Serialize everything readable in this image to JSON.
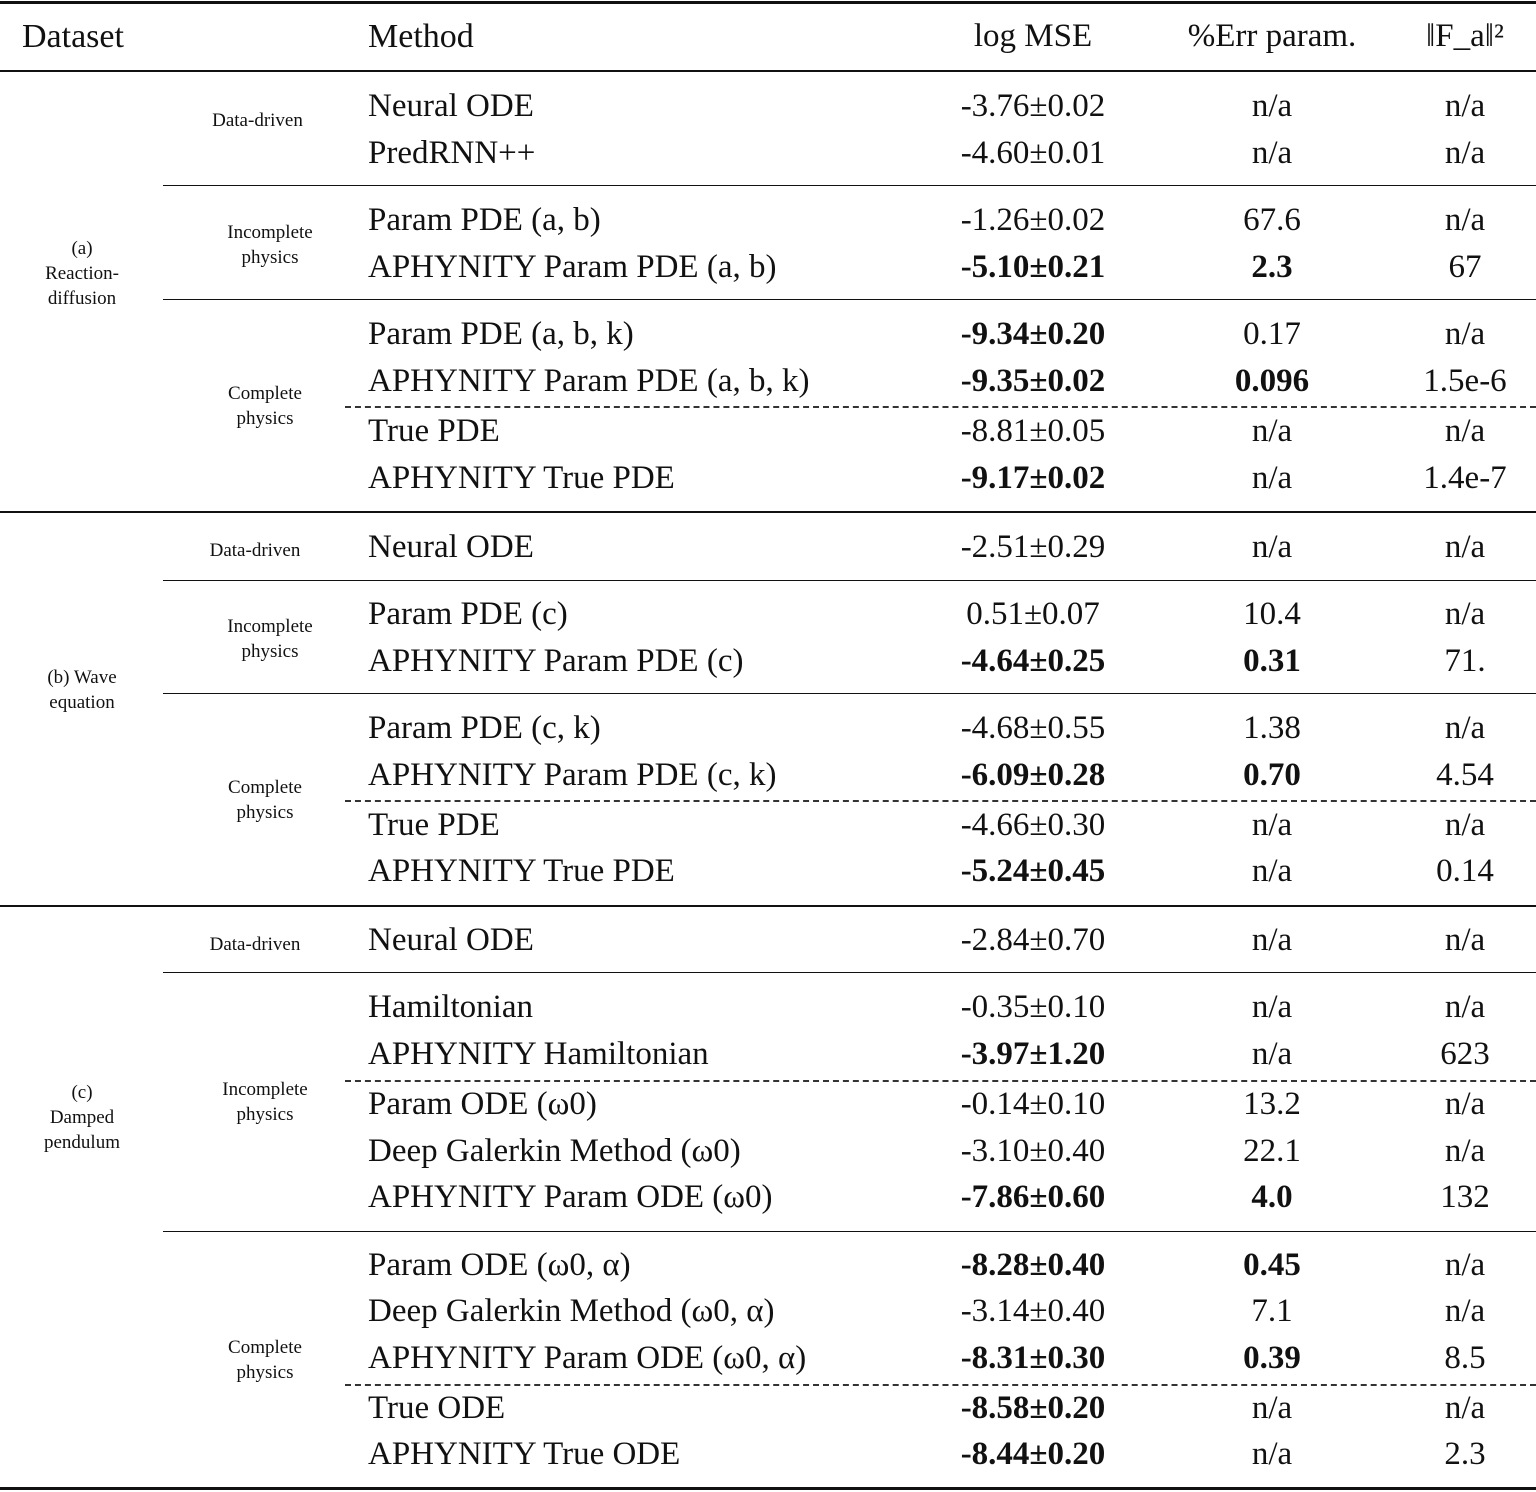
{
  "header": {
    "dataset": "Dataset",
    "method": "Method",
    "log_mse": "log MSE",
    "err_param": "%Err param.",
    "fa_norm": "‖F_a‖²"
  },
  "sections": [
    {
      "dataset": "(a) Reaction-diffusion",
      "groups": [
        {
          "category": "Data-driven",
          "rows": [
            {
              "method": "Neural ODE",
              "log_mse": "-3.76±0.02",
              "err_param": "n/a",
              "fa_norm": "n/a",
              "bold": []
            },
            {
              "method": "PredRNN++",
              "log_mse": "-4.60±0.01",
              "err_param": "n/a",
              "fa_norm": "n/a",
              "bold": []
            }
          ]
        },
        {
          "category": "Incomplete physics",
          "rows": [
            {
              "method": "Param PDE (a, b)",
              "log_mse": "-1.26±0.02",
              "err_param": "67.6",
              "fa_norm": "n/a",
              "bold": []
            },
            {
              "method": "APHYNITY Param PDE (a, b)",
              "log_mse": "-5.10±0.21",
              "err_param": "2.3",
              "fa_norm": "67",
              "bold": [
                "log_mse",
                "err_param"
              ]
            }
          ]
        },
        {
          "category": "Complete physics",
          "rows": [
            {
              "method": "Param PDE (a, b, k)",
              "log_mse": "-9.34±0.20",
              "err_param": "0.17",
              "fa_norm": "n/a",
              "bold": [
                "log_mse"
              ]
            },
            {
              "method": "APHYNITY Param PDE (a, b, k)",
              "log_mse": "-9.35±0.02",
              "err_param": "0.096",
              "fa_norm": "1.5e-6",
              "bold": [
                "log_mse",
                "err_param"
              ]
            },
            {
              "method": "True PDE",
              "log_mse": "-8.81±0.05",
              "err_param": "n/a",
              "fa_norm": "n/a",
              "bold": []
            },
            {
              "method": "APHYNITY True PDE",
              "log_mse": "-9.17±0.02",
              "err_param": "n/a",
              "fa_norm": "1.4e-7",
              "bold": [
                "log_mse"
              ]
            }
          ]
        }
      ]
    },
    {
      "dataset": "(b) Wave equation",
      "groups": [
        {
          "category": "Data-driven",
          "rows": [
            {
              "method": "Neural ODE",
              "log_mse": "-2.51±0.29",
              "err_param": "n/a",
              "fa_norm": "n/a",
              "bold": []
            }
          ]
        },
        {
          "category": "Incomplete physics",
          "rows": [
            {
              "method": "Param PDE (c)",
              "log_mse": "0.51±0.07",
              "err_param": "10.4",
              "fa_norm": "n/a",
              "bold": []
            },
            {
              "method": "APHYNITY Param PDE (c)",
              "log_mse": "-4.64±0.25",
              "err_param": "0.31",
              "fa_norm": "71.",
              "bold": [
                "log_mse",
                "err_param"
              ]
            }
          ]
        },
        {
          "category": "Complete physics",
          "rows": [
            {
              "method": "Param PDE (c, k)",
              "log_mse": "-4.68±0.55",
              "err_param": "1.38",
              "fa_norm": "n/a",
              "bold": []
            },
            {
              "method": "APHYNITY Param PDE (c, k)",
              "log_mse": "-6.09±0.28",
              "err_param": "0.70",
              "fa_norm": "4.54",
              "bold": [
                "log_mse",
                "err_param"
              ]
            },
            {
              "method": "True PDE",
              "log_mse": "-4.66±0.30",
              "err_param": "n/a",
              "fa_norm": "n/a",
              "bold": []
            },
            {
              "method": "APHYNITY True PDE",
              "log_mse": "-5.24±0.45",
              "err_param": "n/a",
              "fa_norm": "0.14",
              "bold": [
                "log_mse"
              ]
            }
          ]
        }
      ]
    },
    {
      "dataset": "(c) Damped pendulum",
      "groups": [
        {
          "category": "Data-driven",
          "rows": [
            {
              "method": "Neural ODE",
              "log_mse": "-2.84±0.70",
              "err_param": "n/a",
              "fa_norm": "n/a",
              "bold": []
            }
          ]
        },
        {
          "category": "Incomplete physics",
          "rows": [
            {
              "method": "Hamiltonian",
              "log_mse": "-0.35±0.10",
              "err_param": "n/a",
              "fa_norm": "n/a",
              "bold": []
            },
            {
              "method": "APHYNITY Hamiltonian",
              "log_mse": "-3.97±1.20",
              "err_param": "n/a",
              "fa_norm": "623",
              "bold": [
                "log_mse"
              ]
            },
            {
              "method": "Param ODE (ω0)",
              "log_mse": "-0.14±0.10",
              "err_param": "13.2",
              "fa_norm": "n/a",
              "bold": []
            },
            {
              "method": "Deep Galerkin Method (ω0)",
              "log_mse": "-3.10±0.40",
              "err_param": "22.1",
              "fa_norm": "n/a",
              "bold": []
            },
            {
              "method": "APHYNITY Param ODE (ω0)",
              "log_mse": "-7.86±0.60",
              "err_param": "4.0",
              "fa_norm": "132",
              "bold": [
                "log_mse",
                "err_param"
              ]
            }
          ]
        },
        {
          "category": "Complete physics",
          "rows": [
            {
              "method": "Param ODE (ω0, α)",
              "log_mse": "-8.28±0.40",
              "err_param": "0.45",
              "fa_norm": "n/a",
              "bold": [
                "log_mse",
                "err_param"
              ]
            },
            {
              "method": "Deep Galerkin Method (ω0, α)",
              "log_mse": "-3.14±0.40",
              "err_param": "7.1",
              "fa_norm": "n/a",
              "bold": []
            },
            {
              "method": "APHYNITY Param ODE (ω0, α)",
              "log_mse": "-8.31±0.30",
              "err_param": "0.39",
              "fa_norm": "8.5",
              "bold": [
                "log_mse",
                "err_param"
              ]
            },
            {
              "method": "True ODE",
              "log_mse": "-8.58±0.20",
              "err_param": "n/a",
              "fa_norm": "n/a",
              "bold": [
                "log_mse"
              ]
            },
            {
              "method": "APHYNITY True ODE",
              "log_mse": "-8.44±0.20",
              "err_param": "n/a",
              "fa_norm": "2.3",
              "bold": [
                "log_mse"
              ]
            }
          ]
        }
      ]
    }
  ]
}
